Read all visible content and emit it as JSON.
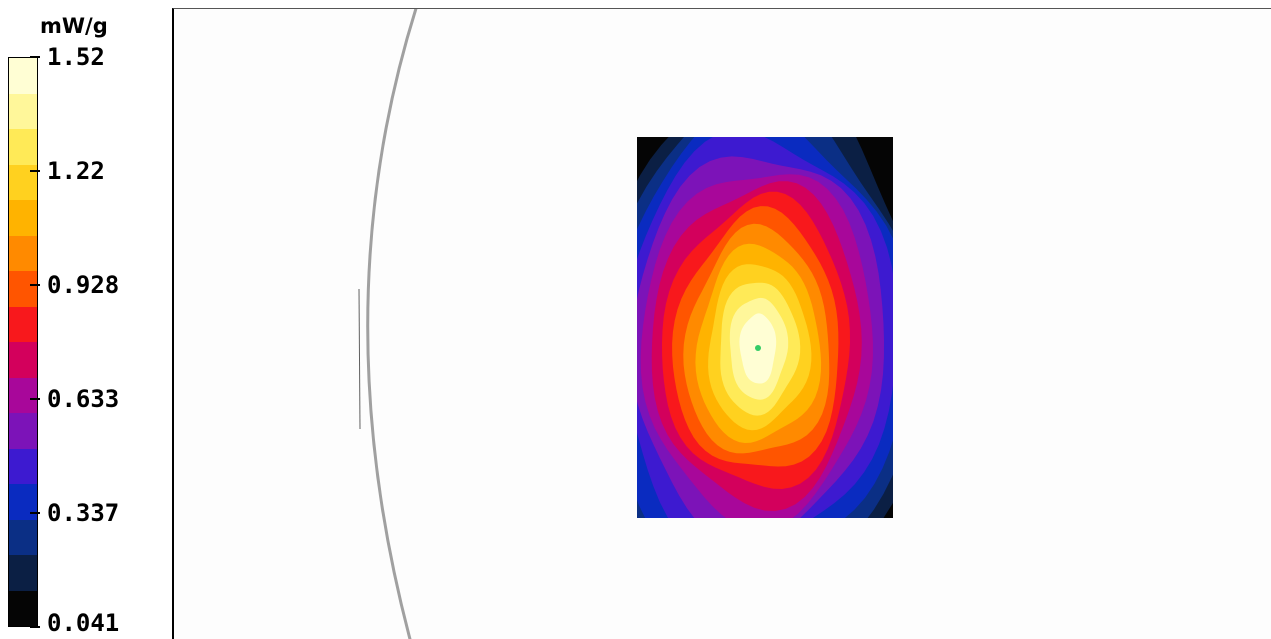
{
  "chart_data": {
    "type": "heatmap",
    "unit": "mW/g",
    "colorbar": {
      "tick_labels": [
        "1.52",
        "1.22",
        "0.928",
        "0.633",
        "0.337",
        "0.041"
      ],
      "min": 0.041,
      "max": 1.52,
      "levels": 15,
      "band_colors": [
        "#fffed4",
        "#fff79a",
        "#ffea57",
        "#ffd11f",
        "#ffb300",
        "#ff8a00",
        "#ff5500",
        "#f8181c",
        "#d3005c",
        "#a8079a",
        "#7c13b8",
        "#3d1ad0",
        "#0a2bc0",
        "#0b2f85",
        "#0b1f44",
        "#050505"
      ]
    },
    "peak": {
      "value": 1.52,
      "marker_color": "#33cc66"
    },
    "grid": false
  }
}
